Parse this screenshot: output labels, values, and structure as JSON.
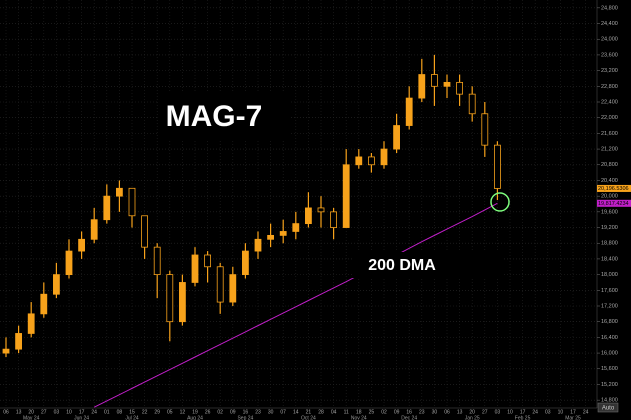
{
  "chart_data": {
    "type": "ohlc",
    "categories": [
      "06",
      "13",
      "20",
      "27",
      "03",
      "10",
      "17",
      "24",
      "01",
      "08",
      "15",
      "22",
      "29",
      "05",
      "12",
      "19",
      "26",
      "02",
      "09",
      "16",
      "23",
      "30",
      "07",
      "14",
      "21",
      "28",
      "04",
      "11",
      "18",
      "25",
      "02",
      "09",
      "16",
      "23",
      "30",
      "06",
      "13",
      "20",
      "27",
      "03",
      "10",
      "17",
      "24",
      "03",
      "10",
      "17",
      "24"
    ],
    "months": [
      {
        "value": 0,
        "label": "May 24"
      },
      {
        "value": 4,
        "label": "Jun 24"
      },
      {
        "value": 8,
        "label": "Jul 24"
      },
      {
        "value": 13,
        "label": "Aug 24"
      },
      {
        "value": 17,
        "label": "Sep 24"
      },
      {
        "value": 22,
        "label": "Oct 24"
      },
      {
        "value": 26,
        "label": "Nov 24"
      },
      {
        "value": 30,
        "label": "Dec 24"
      },
      {
        "value": 35,
        "label": "Jan 25"
      },
      {
        "value": 39,
        "label": "Feb 25"
      },
      {
        "value": 43,
        "label": "Mar 25"
      }
    ],
    "color": "#f7a21b",
    "open": [
      16000,
      16100,
      16500,
      17000,
      17500,
      18000,
      18600,
      18900,
      19400,
      20000,
      20200,
      19500,
      18700,
      18000,
      16800,
      17800,
      18500,
      18200,
      17300,
      18000,
      18600,
      18900,
      19000,
      19100,
      19300,
      19700,
      19600,
      19200,
      20800,
      21000,
      20800,
      21200,
      21800,
      22500,
      23100,
      22800,
      22900,
      22600,
      22100,
      21300,
      null,
      null,
      null,
      null,
      null,
      null,
      null
    ],
    "high": [
      16400,
      16700,
      17300,
      17800,
      18300,
      18900,
      19100,
      19700,
      20300,
      20400,
      20200,
      19500,
      18800,
      18100,
      18000,
      18700,
      18600,
      18300,
      18200,
      18800,
      19100,
      19300,
      19400,
      19600,
      20100,
      20000,
      19700,
      21200,
      21200,
      21100,
      21400,
      22100,
      22800,
      23500,
      23600,
      23100,
      23100,
      22800,
      22400,
      21400,
      null,
      null,
      null,
      null,
      null,
      null,
      null
    ],
    "low": [
      15900,
      16000,
      16400,
      16900,
      17400,
      17900,
      18400,
      18800,
      19300,
      19600,
      19200,
      18400,
      17400,
      16300,
      16700,
      17700,
      17800,
      17000,
      17200,
      17900,
      18400,
      18700,
      18800,
      18900,
      19200,
      19200,
      18900,
      19200,
      20700,
      20600,
      20700,
      21100,
      21700,
      22400,
      22300,
      22500,
      22300,
      21900,
      21000,
      19900,
      null,
      null,
      null,
      null,
      null,
      null,
      null
    ],
    "close": [
      16100,
      16500,
      17000,
      17500,
      18000,
      18600,
      18900,
      19400,
      20000,
      20200,
      19500,
      18700,
      18000,
      16800,
      17800,
      18500,
      18200,
      17300,
      18000,
      18600,
      18900,
      19000,
      19100,
      19300,
      19700,
      19600,
      19200,
      20800,
      21000,
      20800,
      21200,
      21800,
      22500,
      23100,
      22800,
      22900,
      22600,
      22100,
      21300,
      20196.5306,
      null,
      null,
      null,
      null,
      null,
      null,
      null
    ],
    "dma": {
      "color": "#c01fc8",
      "values": [
        null,
        null,
        null,
        null,
        null,
        null,
        null,
        14620,
        14780,
        14940,
        15100,
        15260,
        15420,
        15580,
        15740,
        15900,
        16060,
        16220,
        16380,
        16540,
        16700,
        16860,
        17020,
        17180,
        17340,
        17500,
        17660,
        17820,
        17990,
        18160,
        18330,
        18500,
        18670,
        18840,
        19000,
        19160,
        19320,
        19480,
        19650,
        19817.4234,
        null,
        null,
        null,
        null,
        null,
        null,
        null
      ]
    },
    "price_tags": [
      {
        "value": 20196.5306,
        "label": "20,196.5306",
        "color": "#f7a21b"
      },
      {
        "value": 19817.4234,
        "label": "19,817.4234",
        "color": "#c01fc8"
      }
    ],
    "ylim": [
      14600,
      25000
    ],
    "yticks": [
      {
        "value": 14800,
        "label": "14,800"
      },
      {
        "value": 15200,
        "label": "15,200"
      },
      {
        "value": 15600,
        "label": "15,600"
      },
      {
        "value": 16000,
        "label": "16,000"
      },
      {
        "value": 16400,
        "label": "16,400"
      },
      {
        "value": 16800,
        "label": "16,800"
      },
      {
        "value": 17200,
        "label": "17,200"
      },
      {
        "value": 17600,
        "label": "17,600"
      },
      {
        "value": 18000,
        "label": "18,000"
      },
      {
        "value": 18400,
        "label": "18,400"
      },
      {
        "value": 18800,
        "label": "18,800"
      },
      {
        "value": 19200,
        "label": "19,200"
      },
      {
        "value": 19600,
        "label": "19,600"
      },
      {
        "value": 20000,
        "label": "20,000"
      },
      {
        "value": 20400,
        "label": "20,400"
      },
      {
        "value": 20800,
        "label": "20,800"
      },
      {
        "value": 21200,
        "label": "21,200"
      },
      {
        "value": 21600,
        "label": "21,600"
      },
      {
        "value": 22000,
        "label": "22,000"
      },
      {
        "value": 22400,
        "label": "22,400"
      },
      {
        "value": 22800,
        "label": "22,800"
      },
      {
        "value": 23200,
        "label": "23,200"
      },
      {
        "value": 23600,
        "label": "23,600"
      },
      {
        "value": 24000,
        "label": "24,000"
      },
      {
        "value": 24400,
        "label": "24,400"
      },
      {
        "value": 24800,
        "label": "24,800"
      }
    ],
    "grid": true,
    "annotations": [
      "MAG-7",
      "200 DMA"
    ],
    "axis_button": "Auto"
  }
}
